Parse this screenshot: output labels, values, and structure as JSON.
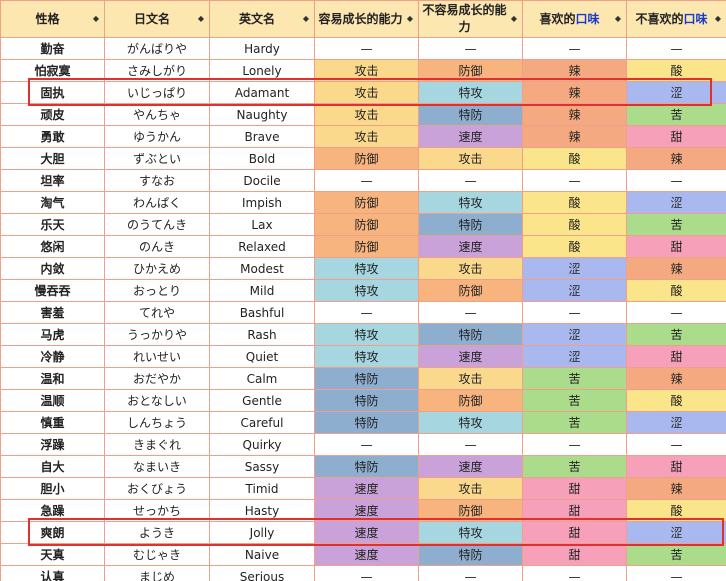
{
  "columns": [
    {
      "label": "性格"
    },
    {
      "label": "日文名"
    },
    {
      "label": "英文名"
    },
    {
      "label": "容易成长的能力"
    },
    {
      "label": "不容易成长的能力"
    },
    {
      "label_pre": "喜欢的",
      "label_hl": "口味"
    },
    {
      "label_pre": "不喜欢的",
      "label_hl": "口味"
    }
  ],
  "colors": {
    "header_bg": "#fde7b0",
    "border": "#f0a08a",
    "highlight_box": "#e03030",
    "攻击": "#fbd98c",
    "防御": "#f8b47e",
    "特攻": "#a6d6df",
    "特防": "#8eaecf",
    "速度": "#c8a2d8",
    "辣": "#f4a981",
    "酸": "#fbe58a",
    "涩": "#a9b8ee",
    "苦": "#abdc8c",
    "甜": "#f6a0b9",
    "neutral": "#ffffff"
  },
  "rows": [
    [
      "勤奋",
      "がんばりや",
      "Hardy",
      "—",
      "—",
      "—",
      "—"
    ],
    [
      "怕寂寞",
      "さみしがり",
      "Lonely",
      "攻击",
      "防御",
      "辣",
      "酸"
    ],
    [
      "固执",
      "いじっぱり",
      "Adamant",
      "攻击",
      "特攻",
      "辣",
      "涩"
    ],
    [
      "顽皮",
      "やんちゃ",
      "Naughty",
      "攻击",
      "特防",
      "辣",
      "苦"
    ],
    [
      "勇敢",
      "ゆうかん",
      "Brave",
      "攻击",
      "速度",
      "辣",
      "甜"
    ],
    [
      "大胆",
      "ずぶとい",
      "Bold",
      "防御",
      "攻击",
      "酸",
      "辣"
    ],
    [
      "坦率",
      "すなお",
      "Docile",
      "—",
      "—",
      "—",
      "—"
    ],
    [
      "淘气",
      "わんぱく",
      "Impish",
      "防御",
      "特攻",
      "酸",
      "涩"
    ],
    [
      "乐天",
      "のうてんき",
      "Lax",
      "防御",
      "特防",
      "酸",
      "苦"
    ],
    [
      "悠闲",
      "のんき",
      "Relaxed",
      "防御",
      "速度",
      "酸",
      "甜"
    ],
    [
      "内敛",
      "ひかえめ",
      "Modest",
      "特攻",
      "攻击",
      "涩",
      "辣"
    ],
    [
      "慢吞吞",
      "おっとり",
      "Mild",
      "特攻",
      "防御",
      "涩",
      "酸"
    ],
    [
      "害羞",
      "てれや",
      "Bashful",
      "—",
      "—",
      "—",
      "—"
    ],
    [
      "马虎",
      "うっかりや",
      "Rash",
      "特攻",
      "特防",
      "涩",
      "苦"
    ],
    [
      "冷静",
      "れいせい",
      "Quiet",
      "特攻",
      "速度",
      "涩",
      "甜"
    ],
    [
      "温和",
      "おだやか",
      "Calm",
      "特防",
      "攻击",
      "苦",
      "辣"
    ],
    [
      "温顺",
      "おとなしい",
      "Gentle",
      "特防",
      "防御",
      "苦",
      "酸"
    ],
    [
      "慎重",
      "しんちょう",
      "Careful",
      "特防",
      "特攻",
      "苦",
      "涩"
    ],
    [
      "浮躁",
      "きまぐれ",
      "Quirky",
      "—",
      "—",
      "—",
      "—"
    ],
    [
      "自大",
      "なまいき",
      "Sassy",
      "特防",
      "速度",
      "苦",
      "甜"
    ],
    [
      "胆小",
      "おくびょう",
      "Timid",
      "速度",
      "攻击",
      "甜",
      "辣"
    ],
    [
      "急躁",
      "せっかち",
      "Hasty",
      "速度",
      "防御",
      "甜",
      "酸"
    ],
    [
      "爽朗",
      "ようき",
      "Jolly",
      "速度",
      "特攻",
      "甜",
      "涩"
    ],
    [
      "天真",
      "むじゃき",
      "Naive",
      "速度",
      "特防",
      "甜",
      "苦"
    ],
    [
      "认真",
      "まじめ",
      "Serious",
      "—",
      "—",
      "—",
      "—"
    ]
  ],
  "highlighted_rows": [
    "Adamant",
    "Jolly"
  ]
}
